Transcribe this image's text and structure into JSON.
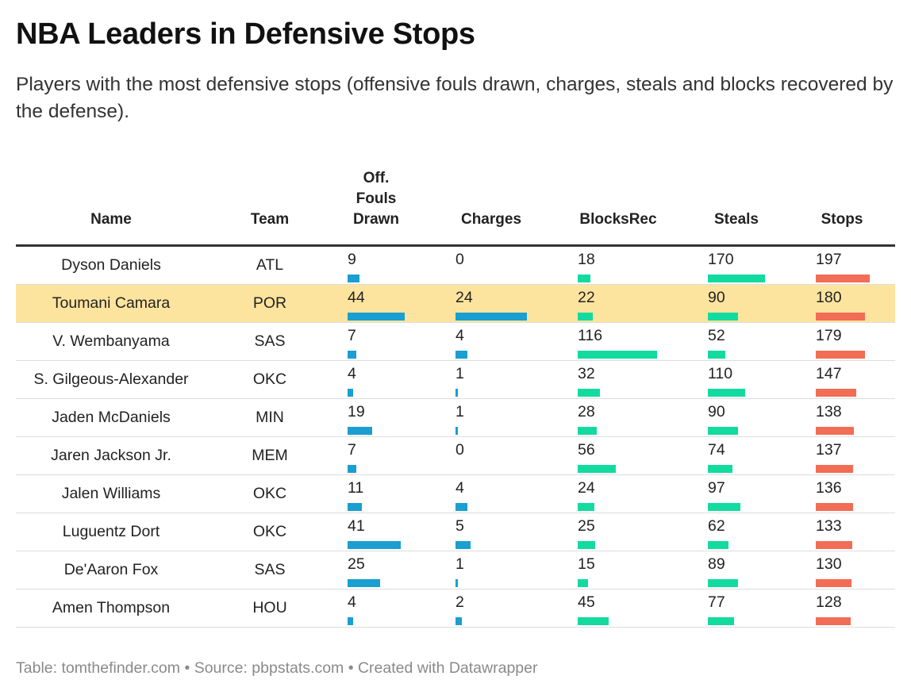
{
  "header": {
    "title": "NBA Leaders in Defensive Stops",
    "subtitle": "Players with the most defensive stops (offensive fouls drawn, charges, steals and blocks recovered by the defense)."
  },
  "columns": {
    "name": "Name",
    "team": "Team",
    "off_fouls_lines": [
      "Off.",
      "Fouls",
      "Drawn"
    ],
    "charges": "Charges",
    "blocks_rec": "BlocksRec",
    "steals": "Steals",
    "stops": "Stops"
  },
  "colors": {
    "off_fouls": "#1a9fd0",
    "charges": "#1a9fd0",
    "blocks_rec": "#13dba0",
    "steals": "#13dba0",
    "stops": "#f26d55",
    "highlight": "#fde49e"
  },
  "chart_data": {
    "type": "table",
    "highlighted_row": 1,
    "rows": [
      {
        "name": "Dyson Daniels",
        "team": "ATL",
        "off_fouls": 9,
        "charges": 0,
        "blocks_rec": 18,
        "steals": 170,
        "stops": 197
      },
      {
        "name": "Toumani Camara",
        "team": "POR",
        "off_fouls": 44,
        "charges": 24,
        "blocks_rec": 22,
        "steals": 90,
        "stops": 180
      },
      {
        "name": "V. Wembanyama",
        "team": "SAS",
        "off_fouls": 7,
        "charges": 4,
        "blocks_rec": 116,
        "steals": 52,
        "stops": 179
      },
      {
        "name": "S. Gilgeous-Alexander",
        "team": "OKC",
        "off_fouls": 4,
        "charges": 1,
        "blocks_rec": 32,
        "steals": 110,
        "stops": 147
      },
      {
        "name": "Jaden McDaniels",
        "team": "MIN",
        "off_fouls": 19,
        "charges": 1,
        "blocks_rec": 28,
        "steals": 90,
        "stops": 138
      },
      {
        "name": "Jaren Jackson Jr.",
        "team": "MEM",
        "off_fouls": 7,
        "charges": 0,
        "blocks_rec": 56,
        "steals": 74,
        "stops": 137
      },
      {
        "name": "Jalen Williams",
        "team": "OKC",
        "off_fouls": 11,
        "charges": 4,
        "blocks_rec": 24,
        "steals": 97,
        "stops": 136
      },
      {
        "name": "Luguentz Dort",
        "team": "OKC",
        "off_fouls": 41,
        "charges": 5,
        "blocks_rec": 25,
        "steals": 62,
        "stops": 133
      },
      {
        "name": "De'Aaron Fox",
        "team": "SAS",
        "off_fouls": 25,
        "charges": 1,
        "blocks_rec": 15,
        "steals": 89,
        "stops": 130
      },
      {
        "name": "Amen Thompson",
        "team": "HOU",
        "off_fouls": 4,
        "charges": 2,
        "blocks_rec": 45,
        "steals": 77,
        "stops": 128
      }
    ]
  },
  "footer": {
    "credit": "Table: tomthefinder.com • Source: pbpstats.com • Created with Datawrapper"
  }
}
